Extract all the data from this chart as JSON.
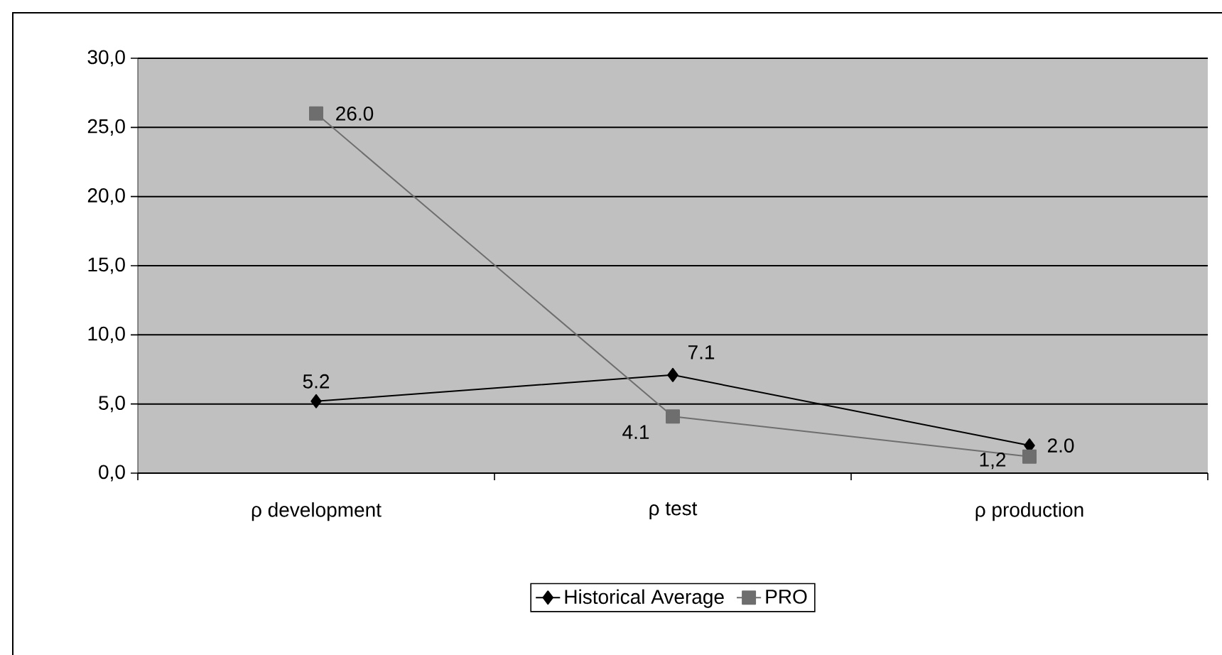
{
  "chart_data": {
    "type": "line",
    "categories": [
      "ρ development",
      "ρ test",
      "ρ production"
    ],
    "series": [
      {
        "name": "Historical Average",
        "color": "#000000",
        "marker": "diamond",
        "values": [
          5.2,
          7.1,
          2.0
        ],
        "value_labels": [
          "5.2",
          "7.1",
          "2.0"
        ]
      },
      {
        "name": "PRO",
        "color": "#6e6e6e",
        "marker": "square",
        "values": [
          26.0,
          4.1,
          1.2
        ],
        "value_labels": [
          "26.0",
          "4.1",
          "1,2"
        ]
      }
    ],
    "ylim": [
      0,
      30
    ],
    "yticks": [
      {
        "value": 0,
        "label": "0,0"
      },
      {
        "value": 5,
        "label": "5,0"
      },
      {
        "value": 10,
        "label": "10,0"
      },
      {
        "value": 15,
        "label": "15,0"
      },
      {
        "value": 20,
        "label": "20,0"
      },
      {
        "value": 25,
        "label": "25,0"
      },
      {
        "value": 30,
        "label": "30,0"
      }
    ],
    "grid": "y",
    "legend": "bottom",
    "line_style": "solid"
  }
}
